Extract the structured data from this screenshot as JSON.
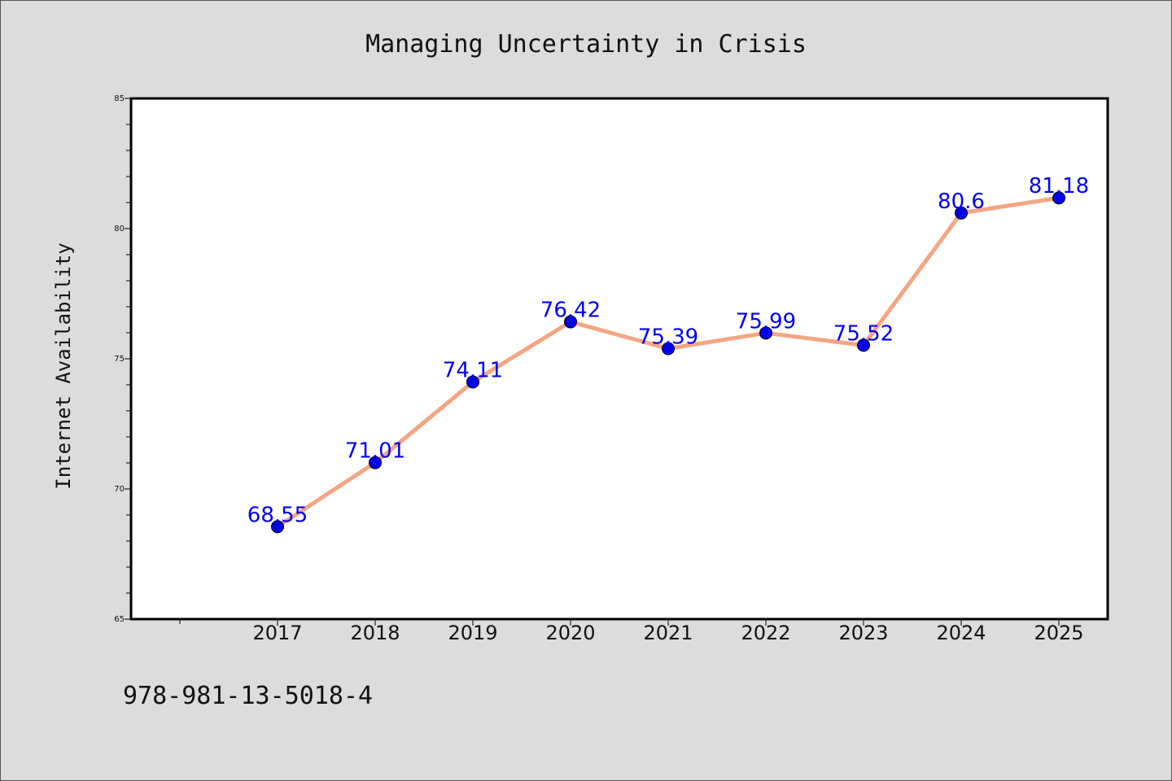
{
  "chart_data": {
    "type": "line",
    "title": "Managing Uncertainty in Crisis",
    "xlabel": "",
    "ylabel": "Internet Availability",
    "categories": [
      "2017",
      "2018",
      "2019",
      "2020",
      "2021",
      "2022",
      "2023",
      "2024",
      "2025"
    ],
    "series": [
      {
        "values": [
          68.55,
          71.01,
          74.11,
          76.42,
          75.39,
          75.99,
          75.52,
          80.6,
          81.18
        ],
        "line_color": "#f4a582",
        "marker_color": "#0000ee"
      }
    ],
    "data_labels": [
      "68.55",
      "71.01",
      "74.11",
      "76.42",
      "75.39",
      "75.99",
      "75.52",
      "80.6",
      "81.18"
    ],
    "ylim": [
      65,
      85
    ],
    "yticks": [
      "65",
      "70",
      "75",
      "80",
      "85"
    ],
    "grid": false,
    "legend": "none"
  },
  "footer": {
    "isbn": "978-981-13-5018-4"
  },
  "colors": {
    "background": "#dcdcdc",
    "plot_area": "#ffffff",
    "line": "#f4a582",
    "marker": "#0000ee",
    "label": "#0000ee"
  }
}
